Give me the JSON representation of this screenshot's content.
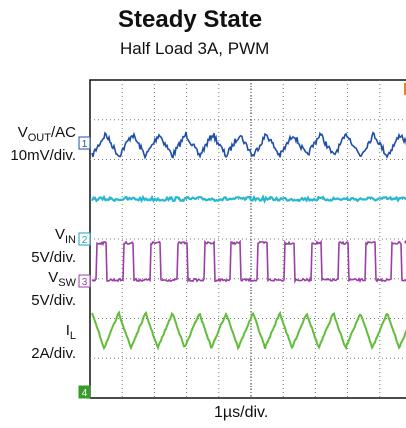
{
  "title": "Steady State",
  "subtitle": "Half Load 3A, PWM",
  "channels": [
    {
      "label": "VOUT/AC",
      "main": "V",
      "sub": "OUT",
      "suffix": "/AC",
      "scale": "10mV/div.",
      "marker": "1",
      "color": "#1f4fa8"
    },
    {
      "label": "",
      "main": "",
      "sub": "",
      "suffix": "",
      "scale": "",
      "marker": "",
      "color": "#25b9cf"
    },
    {
      "label": "VIN",
      "main": "V",
      "sub": "IN",
      "suffix": "",
      "scale": "5V/div.",
      "marker": "2",
      "color": "#1e9fc2"
    },
    {
      "label": "VSW",
      "main": "V",
      "sub": "SW",
      "suffix": "",
      "scale": "5V/div.",
      "marker": "3",
      "color": "#9a3fa5"
    },
    {
      "label": "IL",
      "main": "I",
      "sub": "L",
      "suffix": "",
      "scale": "2A/div.",
      "marker": "",
      "color": "#62bd3a"
    }
  ],
  "ground_marker": "4",
  "time_scale": "1µs/div.",
  "trigger_marker_color": "#f08020",
  "chart_data": {
    "type": "line",
    "title": "Steady State",
    "subtitle": "Half Load 3A, PWM",
    "xlabel": "1µs/div.",
    "x_divisions": 10,
    "y_divisions": 8,
    "grid": true,
    "switching_cycles_in_view": 12,
    "series": [
      {
        "name": "VOUT/AC",
        "scale": "10mV/div.",
        "shape": "triangle ripple",
        "amplitude_div": 0.6
      },
      {
        "name": "VSW",
        "scale": "5V/div.",
        "shape": "square pulse",
        "amplitude_div": 1.1
      },
      {
        "name": "IL",
        "scale": "2A/div.",
        "shape": "sawtooth",
        "amplitude_div": 1.2
      }
    ]
  }
}
